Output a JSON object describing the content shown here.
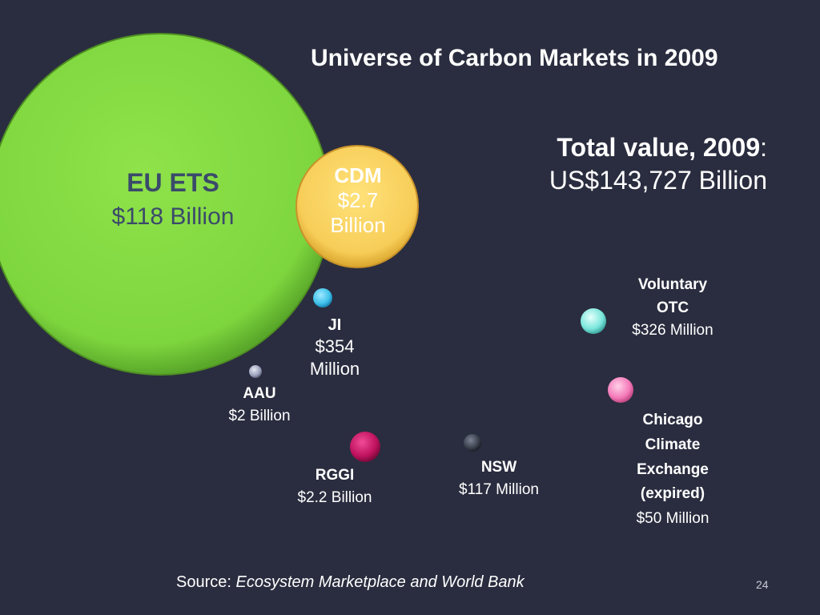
{
  "title": "Universe of Carbon Markets in 2009",
  "total": {
    "label": "Total value, 2009",
    "colon": ":",
    "value": "US$143,727 Billion"
  },
  "source": {
    "prefix": "Source:",
    "text": "Ecosystem Marketplace and  World Bank"
  },
  "page_number": "24",
  "chart_data": {
    "type": "bubble",
    "title": "Universe of Carbon Markets in 2009",
    "series": [
      {
        "name": "EU ETS",
        "value": "$118 Billion",
        "value_usd_millions": 118000,
        "color": "#7ed63e"
      },
      {
        "name": "CDM",
        "value": "$2.7 Billion",
        "value_usd_millions": 2700,
        "color": "#f7cd58"
      },
      {
        "name": "JI",
        "value": "$354 Million",
        "value_usd_millions": 354,
        "color": "#3fc1ea"
      },
      {
        "name": "AAU",
        "value": "$2 Billion",
        "value_usd_millions": 2000,
        "color": "#9ca1bd"
      },
      {
        "name": "RGGI",
        "value": "$2.2 Billion",
        "value_usd_millions": 2200,
        "color": "#c0125e"
      },
      {
        "name": "NSW",
        "value": "$117 Million",
        "value_usd_millions": 117,
        "color": "#3a3f4c"
      },
      {
        "name": "Voluntary OTC",
        "value": "$326 Million",
        "value_usd_millions": 326,
        "color": "#7be6dc"
      },
      {
        "name": "Chicago Climate Exchange (expired)",
        "value": "$50 Million",
        "value_usd_millions": 50,
        "color": "#f47ab9"
      }
    ]
  }
}
